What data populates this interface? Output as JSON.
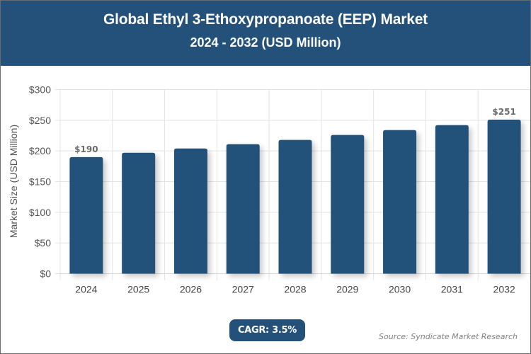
{
  "header": {
    "title": "Global Ethyl 3-Ethoxypropanoate (EEP) Market",
    "subtitle": "2024 - 2032 (USD Million)"
  },
  "colors": {
    "header_bg": "#23517a",
    "bar": "#23517a",
    "grid": "#e3e3e3",
    "axis_text": "#555555"
  },
  "footer": {
    "cagr_label": "CAGR: 3.5%",
    "source": "Source: Syndicate Market Research"
  },
  "chart_data": {
    "type": "bar",
    "title": "Global Ethyl 3-Ethoxypropanoate (EEP) Market",
    "subtitle": "2024 - 2032 (USD Million)",
    "xlabel": "",
    "ylabel": "Market Size (USD Million)",
    "categories": [
      "2024",
      "2025",
      "2026",
      "2027",
      "2028",
      "2029",
      "2030",
      "2031",
      "2032"
    ],
    "values": [
      190,
      197,
      204,
      211,
      218,
      226,
      234,
      242,
      251
    ],
    "data_labels": [
      {
        "index": 0,
        "text": "$190"
      },
      {
        "index": 8,
        "text": "$251"
      }
    ],
    "ylim": [
      0,
      300
    ],
    "yticks": [
      0,
      50,
      100,
      150,
      200,
      250,
      300
    ],
    "ytick_labels": [
      "$0",
      "$50",
      "$100",
      "$150",
      "$200",
      "$250",
      "$300"
    ],
    "grid": true,
    "legend": null,
    "annotations": [
      "CAGR: 3.5%",
      "Source: Syndicate Market Research"
    ]
  }
}
